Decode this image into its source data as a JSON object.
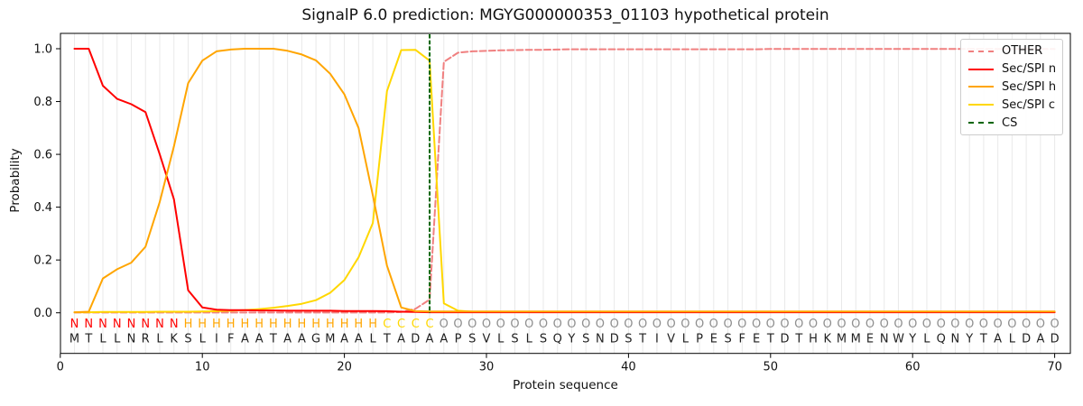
{
  "title": "SignalP 6.0 prediction: MGYG000000353_01103 hypothetical protein",
  "axes": {
    "x_label": "Protein sequence",
    "y_label": "Probability",
    "x_ticks": [
      0,
      10,
      20,
      30,
      40,
      50,
      60,
      70
    ],
    "y_ticks": [
      "0.0",
      "0.2",
      "0.4",
      "0.6",
      "0.8",
      "1.0"
    ],
    "xlim": [
      0,
      71
    ],
    "ylim": [
      -0.15,
      1.06
    ],
    "grid": "vertical line at every residue position 1-70"
  },
  "legend": {
    "position": "upper right",
    "items": [
      {
        "label": "OTHER",
        "color": "#f08080",
        "dashed": true
      },
      {
        "label": "Sec/SPI n",
        "color": "#ff0000",
        "dashed": false
      },
      {
        "label": "Sec/SPI h",
        "color": "#ffa500",
        "dashed": false
      },
      {
        "label": "Sec/SPI c",
        "color": "#ffd700",
        "dashed": false
      },
      {
        "label": "CS",
        "color": "#006400",
        "dashed": true
      }
    ]
  },
  "colors": {
    "grid": "#e9e9e9",
    "spine": "#000000",
    "tick_label": "#111111",
    "sequence_letter": "#1f1f1f",
    "region_letter_colors": {
      "N": "#ff0000",
      "H": "#ffa500",
      "C": "#ffd700",
      "O": "#8f8f8f"
    }
  },
  "chart_data": {
    "type": "line",
    "title": "SignalP 6.0 prediction: MGYG000000353_01103 hypothetical protein",
    "xlabel": "Protein sequence",
    "ylabel": "Probability",
    "x": [
      1,
      2,
      3,
      4,
      5,
      6,
      7,
      8,
      9,
      10,
      11,
      12,
      13,
      14,
      15,
      16,
      17,
      18,
      19,
      20,
      21,
      22,
      23,
      24,
      25,
      26,
      27,
      28,
      29,
      30,
      31,
      32,
      33,
      34,
      35,
      36,
      37,
      38,
      39,
      40,
      41,
      42,
      43,
      44,
      45,
      46,
      47,
      48,
      49,
      50,
      51,
      52,
      53,
      54,
      55,
      56,
      57,
      58,
      59,
      60,
      61,
      62,
      63,
      64,
      65,
      66,
      67,
      68,
      69,
      70
    ],
    "series": [
      {
        "name": "OTHER",
        "color": "#f08080",
        "dashed": true,
        "values": [
          0.001,
          0.001,
          0.001,
          0.001,
          0.001,
          0.001,
          0.001,
          0.001,
          0.001,
          0.001,
          0.001,
          0.001,
          0.001,
          0.001,
          0.001,
          0.001,
          0.001,
          0.001,
          0.001,
          0.001,
          0.001,
          0.001,
          0.001,
          0.003,
          0.015,
          0.05,
          0.95,
          0.985,
          0.99,
          0.992,
          0.994,
          0.995,
          0.996,
          0.996,
          0.997,
          0.998,
          0.998,
          0.998,
          0.998,
          0.998,
          0.998,
          0.998,
          0.998,
          0.998,
          0.998,
          0.998,
          0.998,
          0.998,
          0.998,
          0.999,
          0.999,
          0.999,
          0.999,
          0.999,
          0.999,
          0.999,
          0.999,
          0.999,
          0.999,
          0.999,
          0.999,
          0.999,
          0.999,
          0.999,
          0.999,
          0.999,
          0.999,
          0.999,
          0.999,
          0.999
        ]
      },
      {
        "name": "Sec/SPI c",
        "color": "#ffd700",
        "dashed": false,
        "values": [
          0.002,
          0.002,
          0.003,
          0.003,
          0.003,
          0.003,
          0.004,
          0.004,
          0.004,
          0.005,
          0.006,
          0.008,
          0.01,
          0.014,
          0.019,
          0.026,
          0.034,
          0.048,
          0.076,
          0.124,
          0.21,
          0.34,
          0.84,
          0.995,
          0.996,
          0.955,
          0.036,
          0.008,
          0.004,
          0.004,
          0.004,
          0.004,
          0.004,
          0.004,
          0.004,
          0.004,
          0.004,
          0.004,
          0.004,
          0.004,
          0.004,
          0.004,
          0.004,
          0.004,
          0.004,
          0.004,
          0.004,
          0.004,
          0.004,
          0.004,
          0.004,
          0.004,
          0.004,
          0.004,
          0.004,
          0.004,
          0.004,
          0.004,
          0.004,
          0.004,
          0.004,
          0.004,
          0.004,
          0.004,
          0.004,
          0.004,
          0.004,
          0.004,
          0.004,
          0.004
        ]
      },
      {
        "name": "Sec/SPI n",
        "color": "#ff0000",
        "dashed": false,
        "values": [
          1.0,
          1.0,
          0.86,
          0.81,
          0.79,
          0.76,
          0.6,
          0.43,
          0.085,
          0.02,
          0.012,
          0.01,
          0.01,
          0.009,
          0.009,
          0.008,
          0.008,
          0.008,
          0.008,
          0.007,
          0.007,
          0.007,
          0.006,
          0.004,
          0.003,
          0.002,
          0.002,
          0.002,
          0.002,
          0.002,
          0.002,
          0.002,
          0.002,
          0.002,
          0.002,
          0.002,
          0.002,
          0.002,
          0.002,
          0.002,
          0.002,
          0.002,
          0.002,
          0.002,
          0.002,
          0.002,
          0.002,
          0.002,
          0.002,
          0.002,
          0.002,
          0.002,
          0.002,
          0.002,
          0.002,
          0.002,
          0.002,
          0.002,
          0.002,
          0.002,
          0.002,
          0.002,
          0.002,
          0.002,
          0.002,
          0.002,
          0.002,
          0.002,
          0.002,
          0.002
        ]
      },
      {
        "name": "Sec/SPI h",
        "color": "#ffa500",
        "dashed": false,
        "values": [
          0.002,
          0.004,
          0.13,
          0.165,
          0.19,
          0.25,
          0.42,
          0.63,
          0.87,
          0.955,
          0.99,
          0.997,
          1.0,
          1.0,
          1.0,
          0.992,
          0.978,
          0.956,
          0.905,
          0.827,
          0.7,
          0.445,
          0.178,
          0.02,
          0.006,
          0.005,
          0.005,
          0.005,
          0.005,
          0.005,
          0.005,
          0.005,
          0.005,
          0.005,
          0.005,
          0.005,
          0.005,
          0.005,
          0.005,
          0.005,
          0.005,
          0.005,
          0.005,
          0.005,
          0.005,
          0.005,
          0.005,
          0.005,
          0.005,
          0.005,
          0.005,
          0.005,
          0.005,
          0.005,
          0.005,
          0.005,
          0.005,
          0.005,
          0.005,
          0.005,
          0.005,
          0.005,
          0.005,
          0.005,
          0.005,
          0.005,
          0.005,
          0.005,
          0.005,
          0.005
        ]
      }
    ],
    "cs_marker": {
      "label": "CS",
      "x": 26,
      "color": "#006400",
      "dashed": true
    },
    "region_labels": "NNNNNNNNHHHHHHHHHHHHHHCCCCOOOOOOOOOOOOOOOOOOOOOOOOOOOOOOOOOOOOOOOOOOOO",
    "sequence": "MTLLNRLKSLIFAATAAGMAALTADAAPSVLSLSQYSNDSTIVLPESFETDTHKMMENWYLQNYTALDAD"
  }
}
